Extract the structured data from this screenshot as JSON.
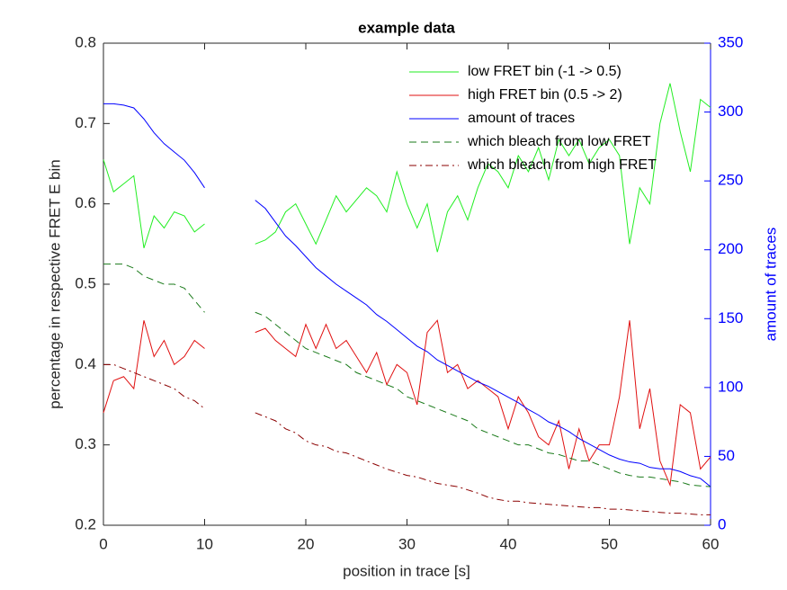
{
  "chart_data": {
    "type": "line",
    "title": "example data",
    "xlabel": "position in trace [s]",
    "ylabel": "percentage in respective FRET E bin",
    "y2label": "amount of traces",
    "x": [
      0,
      1,
      2,
      3,
      4,
      5,
      6,
      7,
      8,
      9,
      10,
      11,
      12,
      13,
      14,
      15,
      16,
      17,
      18,
      19,
      20,
      21,
      22,
      23,
      24,
      25,
      26,
      27,
      28,
      29,
      30,
      31,
      32,
      33,
      34,
      35,
      36,
      37,
      38,
      39,
      40,
      41,
      42,
      43,
      44,
      45,
      46,
      47,
      48,
      49,
      50,
      51,
      52,
      53,
      54,
      55,
      56,
      57,
      58,
      59,
      60
    ],
    "xlim": [
      0,
      60
    ],
    "xticks": [
      0,
      10,
      20,
      30,
      40,
      50,
      60
    ],
    "ylim": [
      0.2,
      0.8
    ],
    "yticks": [
      0.2,
      0.3,
      0.4,
      0.5,
      0.6,
      0.7,
      0.8
    ],
    "y2lim": [
      0,
      350
    ],
    "y2ticks": [
      0,
      50,
      100,
      150,
      200,
      250,
      300,
      350
    ],
    "y2color": "#0000ff",
    "legend": "upper-right",
    "series": [
      {
        "name": "low FRET bin (-1 -> 0.5)",
        "color": "#22ee22",
        "linestyle": "solid",
        "values": [
          0.655,
          0.615,
          0.625,
          0.635,
          0.545,
          0.585,
          0.57,
          0.59,
          0.585,
          0.565,
          0.575,
          null,
          null,
          null,
          null,
          0.55,
          0.555,
          0.565,
          0.59,
          0.6,
          0.575,
          0.55,
          0.58,
          0.61,
          0.59,
          0.605,
          0.62,
          0.61,
          0.59,
          0.64,
          0.6,
          0.57,
          0.6,
          0.54,
          0.59,
          0.61,
          0.58,
          0.62,
          0.65,
          0.64,
          0.62,
          0.66,
          0.64,
          0.67,
          0.63,
          0.68,
          0.66,
          0.68,
          0.65,
          0.67,
          0.68,
          0.66,
          0.55,
          0.62,
          0.6,
          0.7,
          0.75,
          0.69,
          0.64,
          0.73,
          0.72
        ]
      },
      {
        "name": "high FRET bin (0.5 -> 2)",
        "color": "#e01010",
        "linestyle": "solid",
        "values": [
          0.34,
          0.38,
          0.385,
          0.37,
          0.455,
          0.41,
          0.43,
          0.4,
          0.41,
          0.43,
          0.42,
          null,
          null,
          null,
          null,
          0.44,
          0.445,
          0.43,
          0.42,
          0.41,
          0.45,
          0.42,
          0.45,
          0.42,
          0.43,
          0.41,
          0.39,
          0.415,
          0.375,
          0.4,
          0.39,
          0.35,
          0.44,
          0.455,
          0.39,
          0.4,
          0.37,
          0.38,
          0.37,
          0.36,
          0.32,
          0.36,
          0.34,
          0.31,
          0.3,
          0.33,
          0.27,
          0.32,
          0.28,
          0.3,
          0.3,
          0.36,
          0.455,
          0.32,
          0.37,
          0.28,
          0.25,
          0.35,
          0.34,
          0.27,
          0.285
        ]
      },
      {
        "name": "amount of traces",
        "color": "#0000ff",
        "linestyle": "solid",
        "axis": "y2",
        "values": [
          306,
          306,
          305,
          303,
          295,
          285,
          277,
          271,
          265,
          256,
          245,
          null,
          null,
          null,
          null,
          236,
          230,
          220,
          210,
          203,
          195,
          187,
          181,
          175,
          170,
          165,
          160,
          153,
          148,
          142,
          136,
          130,
          126,
          120,
          116,
          112,
          108,
          104,
          101,
          97,
          93,
          89,
          84,
          80,
          75,
          72,
          68,
          63,
          59,
          55,
          51,
          48,
          46,
          45,
          42,
          41,
          41,
          39,
          36,
          34,
          28
        ]
      },
      {
        "name": "which bleach from low FRET",
        "color": "#1a7a1a",
        "linestyle": "dashed",
        "values": [
          0.525,
          0.525,
          0.525,
          0.52,
          0.51,
          0.505,
          0.5,
          0.5,
          0.495,
          0.48,
          0.465,
          null,
          null,
          null,
          null,
          0.465,
          0.46,
          0.45,
          0.44,
          0.43,
          0.42,
          0.415,
          0.41,
          0.405,
          0.4,
          0.39,
          0.385,
          0.38,
          0.375,
          0.37,
          0.36,
          0.355,
          0.35,
          0.345,
          0.34,
          0.335,
          0.33,
          0.32,
          0.315,
          0.31,
          0.305,
          0.3,
          0.3,
          0.295,
          0.29,
          0.288,
          0.284,
          0.28,
          0.28,
          0.275,
          0.27,
          0.265,
          0.262,
          0.26,
          0.26,
          0.258,
          0.256,
          0.254,
          0.25,
          0.249,
          0.248
        ]
      },
      {
        "name": "which bleach from high FRET",
        "color": "#8b0000",
        "linestyle": "dashdot",
        "values": [
          0.4,
          0.4,
          0.395,
          0.39,
          0.385,
          0.38,
          0.375,
          0.37,
          0.36,
          0.355,
          0.345,
          null,
          null,
          null,
          null,
          0.34,
          0.335,
          0.33,
          0.32,
          0.315,
          0.305,
          0.3,
          0.298,
          0.292,
          0.29,
          0.285,
          0.28,
          0.275,
          0.27,
          0.266,
          0.262,
          0.26,
          0.256,
          0.252,
          0.25,
          0.248,
          0.244,
          0.24,
          0.235,
          0.232,
          0.23,
          0.23,
          0.228,
          0.227,
          0.226,
          0.225,
          0.224,
          0.223,
          0.222,
          0.222,
          0.22,
          0.22,
          0.219,
          0.218,
          0.217,
          0.216,
          0.215,
          0.215,
          0.214,
          0.213,
          0.213
        ]
      }
    ]
  }
}
